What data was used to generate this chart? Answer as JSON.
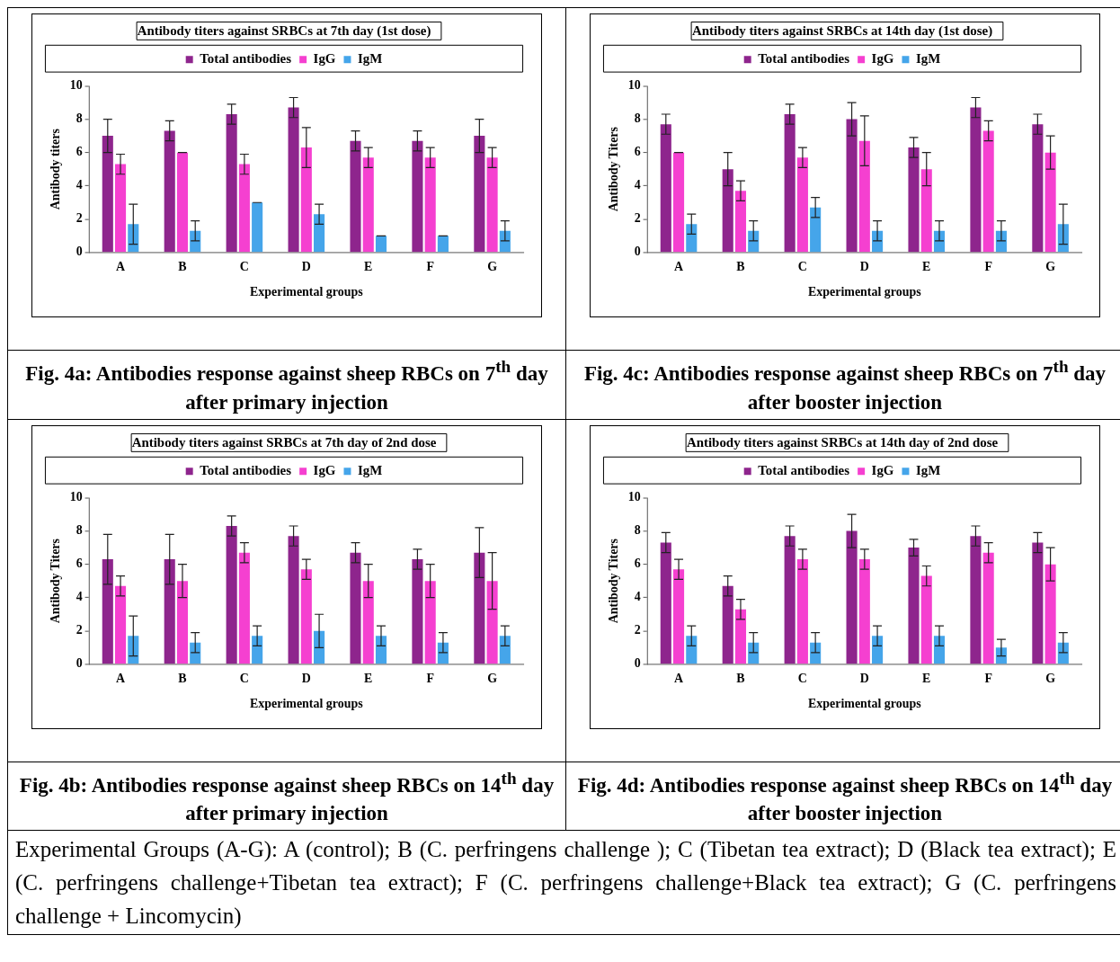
{
  "chart_data": [
    {
      "type": "bar",
      "title": "Antibody titers against SRBCs at 7th day (1st dose)",
      "xlabel": "Experimental groups",
      "ylabel": "Antibody titers",
      "categories": [
        "A",
        "B",
        "C",
        "D",
        "E",
        "F",
        "G"
      ],
      "ylim": [
        0,
        10
      ],
      "yticks": [
        0,
        2,
        4,
        6,
        8,
        10
      ],
      "grid": false,
      "legend": "top",
      "annotations": [
        "Fig. 4a: Antibodies response against sheep RBCs on 7$^{th}$ day after primary injection"
      ],
      "series": [
        {
          "name": "Total antibodies",
          "color": "#8e258d",
          "values": [
            7.0,
            7.3,
            8.3,
            8.7,
            6.7,
            6.7,
            7.0
          ],
          "errors": [
            1.0,
            0.6,
            0.6,
            0.6,
            0.6,
            0.6,
            1.0
          ]
        },
        {
          "name": "IgG",
          "color": "#f540d0",
          "values": [
            5.3,
            6.0,
            5.3,
            6.3,
            5.7,
            5.7,
            5.7
          ],
          "errors": [
            0.6,
            0,
            0.6,
            1.2,
            0.6,
            0.6,
            0.6
          ]
        },
        {
          "name": "IgM",
          "color": "#45a5ea",
          "values": [
            1.7,
            1.3,
            3.0,
            2.3,
            1.0,
            1.0,
            1.3
          ],
          "errors": [
            1.2,
            0.6,
            0,
            0.6,
            0,
            0,
            0.6
          ]
        }
      ]
    },
    {
      "type": "bar",
      "title": "Antibody titers against SRBCs at 14th day (1st dose)",
      "xlabel": "Experimental groups",
      "ylabel": "Antibody Titers",
      "categories": [
        "A",
        "B",
        "C",
        "D",
        "E",
        "F",
        "G"
      ],
      "ylim": [
        0,
        10
      ],
      "yticks": [
        0,
        2,
        4,
        6,
        8,
        10
      ],
      "grid": false,
      "legend": "top",
      "annotations": [
        "Fig. 4c: Antibodies response against sheep RBCs on 7$^{th}$ day after booster injection"
      ],
      "series": [
        {
          "name": "Total antibodies",
          "color": "#8e258d",
          "values": [
            7.7,
            5.0,
            8.3,
            8.0,
            6.3,
            8.7,
            7.7
          ],
          "errors": [
            0.6,
            1.0,
            0.6,
            1.0,
            0.6,
            0.6,
            0.6
          ]
        },
        {
          "name": "IgG",
          "color": "#f540d0",
          "values": [
            6.0,
            3.7,
            5.7,
            6.7,
            5.0,
            7.3,
            6.0
          ],
          "errors": [
            0,
            0.6,
            0.6,
            1.5,
            1.0,
            0.6,
            1.0
          ]
        },
        {
          "name": "IgM",
          "color": "#45a5ea",
          "values": [
            1.7,
            1.3,
            2.7,
            1.3,
            1.3,
            1.3,
            1.7
          ],
          "errors": [
            0.6,
            0.6,
            0.6,
            0.6,
            0.6,
            0.6,
            1.2
          ]
        }
      ]
    },
    {
      "type": "bar",
      "title": "Antibody titers against SRBCs at 7th day of 2nd dose",
      "xlabel": "Experimental groups",
      "ylabel": "Antibody Titers",
      "categories": [
        "A",
        "B",
        "C",
        "D",
        "E",
        "F",
        "G"
      ],
      "ylim": [
        0,
        10
      ],
      "yticks": [
        0,
        2,
        4,
        6,
        8,
        10
      ],
      "grid": false,
      "legend": "top",
      "annotations": [
        "Fig. 4b: Antibodies response against sheep RBCs on 14$^{th}$ day after primary injection"
      ],
      "series": [
        {
          "name": "Total antibodies",
          "color": "#8e258d",
          "values": [
            6.3,
            6.3,
            8.3,
            7.7,
            6.7,
            6.3,
            6.7
          ],
          "errors": [
            1.5,
            1.5,
            0.6,
            0.6,
            0.6,
            0.6,
            1.5
          ]
        },
        {
          "name": "IgG",
          "color": "#f540d0",
          "values": [
            4.7,
            5.0,
            6.7,
            5.7,
            5.0,
            5.0,
            5.0
          ],
          "errors": [
            0.6,
            1.0,
            0.6,
            0.6,
            1.0,
            1.0,
            1.7
          ]
        },
        {
          "name": "IgM",
          "color": "#45a5ea",
          "values": [
            1.7,
            1.3,
            1.7,
            2.0,
            1.7,
            1.3,
            1.7
          ],
          "errors": [
            1.2,
            0.6,
            0.6,
            1.0,
            0.6,
            0.6,
            0.6
          ]
        }
      ]
    },
    {
      "type": "bar",
      "title": "Antibody titers against SRBCs at 14th day of 2nd dose",
      "xlabel": "Experimental groups",
      "ylabel": "Antibody Titers",
      "categories": [
        "A",
        "B",
        "C",
        "D",
        "E",
        "F",
        "G"
      ],
      "ylim": [
        0,
        10
      ],
      "yticks": [
        0,
        2,
        4,
        6,
        8,
        10
      ],
      "grid": false,
      "legend": "top",
      "annotations": [
        "Fig. 4d: Antibodies response against sheep RBCs on 14$^{th}$ day after booster injection",
        "Experimental Groups (A-G): A (control); B (C. perfringens challenge ); C (Tibetan tea extract); D (Black tea extract); E (C. perfringens challenge+Tibetan tea extract); F (C. perfringens challenge+Black tea extract); G (C. perfringens challenge + Lincomycin)"
      ],
      "series": [
        {
          "name": "Total antibodies",
          "color": "#8e258d",
          "values": [
            7.3,
            4.7,
            7.7,
            8.0,
            7.0,
            7.7,
            7.3
          ],
          "errors": [
            0.6,
            0.6,
            0.6,
            1.0,
            0.5,
            0.6,
            0.6
          ]
        },
        {
          "name": "IgG",
          "color": "#f540d0",
          "values": [
            5.7,
            3.3,
            6.3,
            6.3,
            5.3,
            6.7,
            6.0
          ],
          "errors": [
            0.6,
            0.6,
            0.6,
            0.6,
            0.6,
            0.6,
            1.0
          ]
        },
        {
          "name": "IgM",
          "color": "#45a5ea",
          "values": [
            1.7,
            1.3,
            1.3,
            1.7,
            1.7,
            1.0,
            1.3
          ],
          "errors": [
            0.6,
            0.6,
            0.6,
            0.6,
            0.6,
            0.5,
            0.6
          ]
        }
      ]
    }
  ]
}
